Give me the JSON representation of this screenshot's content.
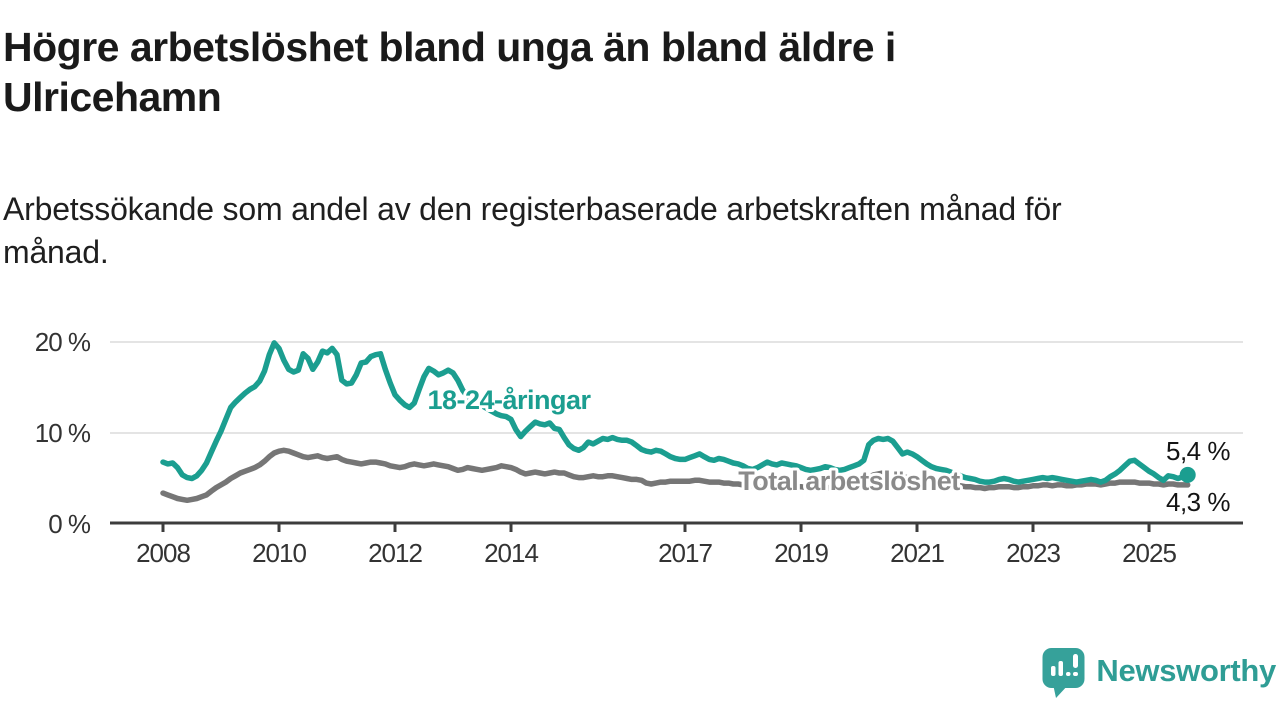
{
  "header": {
    "title_lines": [
      "Högre arbetslöshet bland unga än bland äldre i",
      "Ulricehamn"
    ],
    "subtitle_lines": [
      "Arbetssökande som andel av den registerbaserade arbetskraften månad för",
      "månad."
    ]
  },
  "chart_data": {
    "type": "line",
    "unit": "percent",
    "frequency": "monthly",
    "x_start_year": 2008,
    "x_start_month": 1,
    "x_end": "2025-09",
    "ylim": [
      0,
      21
    ],
    "grid": "horizontal",
    "yticks": [
      {
        "value": 0,
        "label": "0 %"
      },
      {
        "value": 10,
        "label": "10 %"
      },
      {
        "value": 20,
        "label": "20 %"
      }
    ],
    "xticks": [
      2008,
      2010,
      2012,
      2014,
      2017,
      2019,
      2021,
      2023,
      2025
    ],
    "series": [
      {
        "name": "total",
        "label": "Total arbetslöshet",
        "color": "#767676",
        "end_label": "4,3 %",
        "end_dot": false,
        "values": [
          3.4,
          3.2,
          3.0,
          2.8,
          2.7,
          2.6,
          2.7,
          2.8,
          3.0,
          3.2,
          3.6,
          4.0,
          4.3,
          4.6,
          5.0,
          5.3,
          5.6,
          5.8,
          6.0,
          6.2,
          6.5,
          6.9,
          7.4,
          7.8,
          8.0,
          8.1,
          8.0,
          7.8,
          7.6,
          7.4,
          7.3,
          7.4,
          7.5,
          7.3,
          7.2,
          7.3,
          7.4,
          7.1,
          6.9,
          6.8,
          6.7,
          6.6,
          6.7,
          6.8,
          6.8,
          6.7,
          6.6,
          6.4,
          6.3,
          6.2,
          6.3,
          6.5,
          6.6,
          6.5,
          6.4,
          6.5,
          6.6,
          6.5,
          6.4,
          6.3,
          6.1,
          5.9,
          6.0,
          6.2,
          6.1,
          6.0,
          5.9,
          6.0,
          6.1,
          6.2,
          6.4,
          6.3,
          6.2,
          6.0,
          5.7,
          5.5,
          5.6,
          5.7,
          5.6,
          5.5,
          5.6,
          5.7,
          5.6,
          5.6,
          5.4,
          5.2,
          5.1,
          5.1,
          5.2,
          5.3,
          5.2,
          5.2,
          5.3,
          5.3,
          5.2,
          5.1,
          5.0,
          4.9,
          4.9,
          4.8,
          4.5,
          4.4,
          4.5,
          4.6,
          4.6,
          4.7,
          4.7,
          4.7,
          4.7,
          4.7,
          4.8,
          4.8,
          4.7,
          4.6,
          4.6,
          4.6,
          4.5,
          4.5,
          4.4,
          4.4,
          4.3,
          4.2,
          4.2,
          4.1,
          4.1,
          4.2,
          4.2,
          4.1,
          4.1,
          4.0,
          4.0,
          4.1,
          4.1,
          4.0,
          4.0,
          3.9,
          3.9,
          4.0,
          4.0,
          4.0,
          3.9,
          4.0,
          4.1,
          4.2,
          4.4,
          4.6,
          5.1,
          5.4,
          5.5,
          5.6,
          5.6,
          5.5,
          5.4,
          5.2,
          5.1,
          5.1,
          5.0,
          4.9,
          4.8,
          4.7,
          4.6,
          4.5,
          4.4,
          4.3,
          4.2,
          4.2,
          4.1,
          4.1,
          4.0,
          4.0,
          3.9,
          4.0,
          4.0,
          4.1,
          4.1,
          4.1,
          4.0,
          4.0,
          4.1,
          4.1,
          4.2,
          4.2,
          4.3,
          4.3,
          4.2,
          4.3,
          4.3,
          4.2,
          4.2,
          4.3,
          4.3,
          4.4,
          4.4,
          4.4,
          4.3,
          4.4,
          4.5,
          4.5,
          4.6,
          4.6,
          4.6,
          4.6,
          4.5,
          4.5,
          4.5,
          4.4,
          4.4,
          4.3,
          4.4,
          4.4,
          4.3,
          4.3,
          4.3
        ]
      },
      {
        "name": "youth",
        "label": "18-24-åringar",
        "color": "#1b9e90",
        "end_label": "5,4 %",
        "end_dot": true,
        "values": [
          6.8,
          6.6,
          6.7,
          6.2,
          5.4,
          5.1,
          5.0,
          5.3,
          5.9,
          6.7,
          7.9,
          9.1,
          10.2,
          11.5,
          12.8,
          13.4,
          13.9,
          14.4,
          14.8,
          15.1,
          15.7,
          16.8,
          18.6,
          19.9,
          19.3,
          18.0,
          17.0,
          16.7,
          16.9,
          18.7,
          18.2,
          17.0,
          17.8,
          19.0,
          18.8,
          19.3,
          18.6,
          15.8,
          15.4,
          15.5,
          16.4,
          17.7,
          17.8,
          18.4,
          18.6,
          18.7,
          17.0,
          15.5,
          14.2,
          13.6,
          13.1,
          12.8,
          13.3,
          14.8,
          16.2,
          17.1,
          16.8,
          16.4,
          16.6,
          16.9,
          16.6,
          15.8,
          14.7,
          14.0,
          13.6,
          13.3,
          13.0,
          12.7,
          12.4,
          12.1,
          11.9,
          11.8,
          11.5,
          10.4,
          9.6,
          10.2,
          10.7,
          11.2,
          11.0,
          10.9,
          11.1,
          10.5,
          10.4,
          9.5,
          8.7,
          8.3,
          8.1,
          8.4,
          9.0,
          8.8,
          9.1,
          9.4,
          9.3,
          9.5,
          9.3,
          9.2,
          9.2,
          9.0,
          8.6,
          8.2,
          8.0,
          7.9,
          8.1,
          8.0,
          7.7,
          7.4,
          7.2,
          7.1,
          7.1,
          7.3,
          7.5,
          7.7,
          7.4,
          7.1,
          7.0,
          7.2,
          7.1,
          6.9,
          6.7,
          6.6,
          6.4,
          6.1,
          6.0,
          6.2,
          6.5,
          6.8,
          6.6,
          6.5,
          6.7,
          6.6,
          6.5,
          6.4,
          6.2,
          6.0,
          5.9,
          6.0,
          6.1,
          6.3,
          6.2,
          6.0,
          5.9,
          6.0,
          6.2,
          6.4,
          6.6,
          7.0,
          8.7,
          9.2,
          9.4,
          9.3,
          9.4,
          9.1,
          8.4,
          7.7,
          7.9,
          7.7,
          7.4,
          7.0,
          6.6,
          6.3,
          6.1,
          6.0,
          5.9,
          5.7,
          5.5,
          5.3,
          5.1,
          5.0,
          4.9,
          4.7,
          4.6,
          4.6,
          4.7,
          4.9,
          5.0,
          4.9,
          4.7,
          4.6,
          4.7,
          4.8,
          4.9,
          5.0,
          5.1,
          5.0,
          5.1,
          5.0,
          4.9,
          4.8,
          4.7,
          4.6,
          4.7,
          4.8,
          4.9,
          4.8,
          4.6,
          4.8,
          5.2,
          5.5,
          5.9,
          6.4,
          6.9,
          7.0,
          6.6,
          6.2,
          5.8,
          5.5,
          5.1,
          4.8,
          5.3,
          5.2,
          5.0,
          5.2,
          5.4
        ]
      }
    ]
  },
  "footer": {
    "brand": "Newsworthy"
  },
  "colors": {
    "teal": "#1b9e90",
    "gray": "#767676",
    "axis": "#3c3c3c",
    "grid": "#dcdcdc",
    "text": "#1a1a1a",
    "brand_teal": "#2f9d95",
    "logo_bubble": "#36a19a"
  }
}
